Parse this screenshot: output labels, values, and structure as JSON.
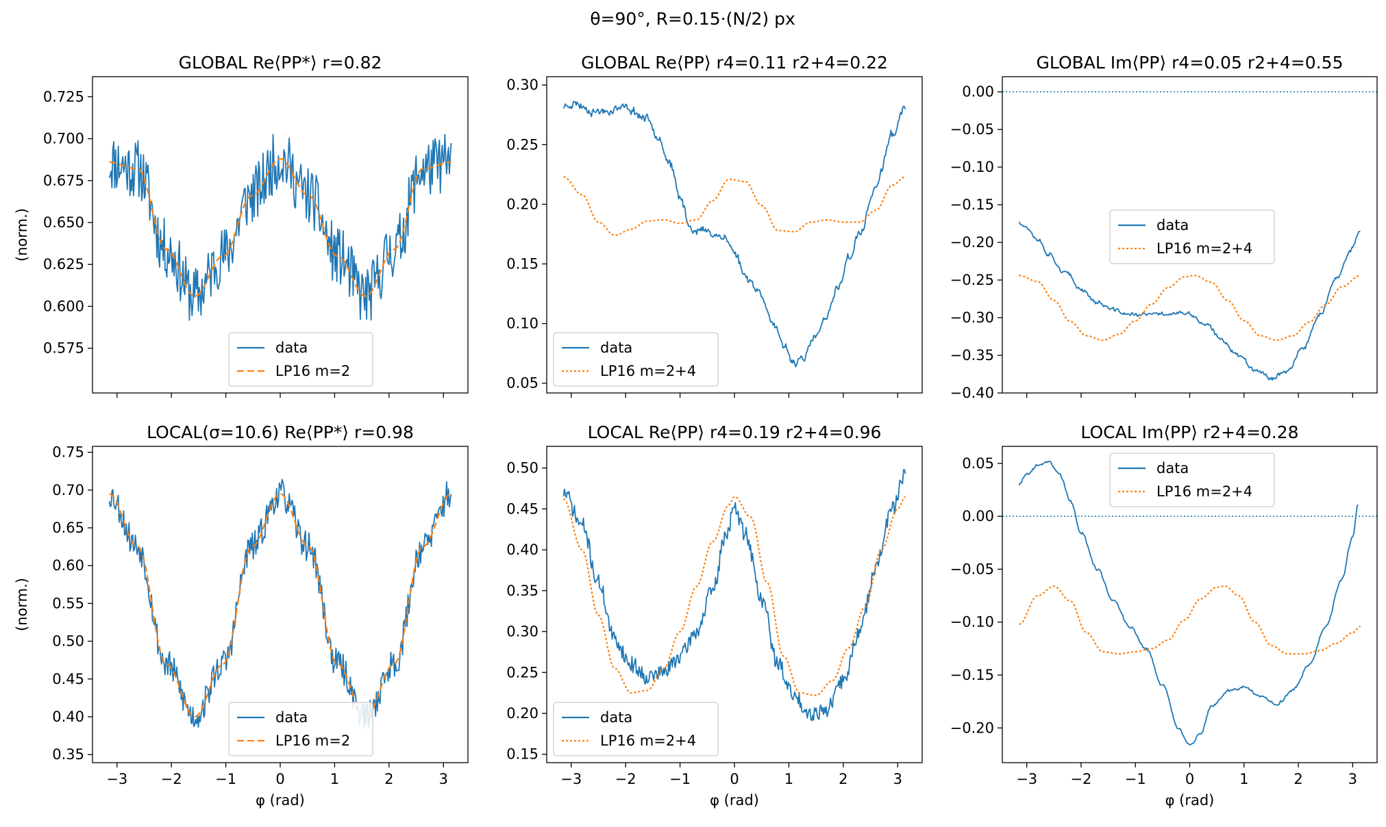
{
  "figure": {
    "suptitle": "θ=90°,  R=0.15·(N/2) px"
  },
  "colors": {
    "data": "#1f77b4",
    "model": "#ff7f0e",
    "axes": "#000000",
    "legend_edge": "#cccccc"
  },
  "chart_data": [
    {
      "type": "line",
      "title": "GLOBAL Re⟨PP*⟩  r=0.82",
      "xlabel": "",
      "ylabel": "(norm.)",
      "xlim": [
        -3.45,
        3.45
      ],
      "ylim": [
        0.5483,
        0.737
      ],
      "xticks": [
        -3,
        -2,
        -1,
        0,
        1,
        2,
        3
      ],
      "xticklabels_visible": false,
      "yticks": [
        0.575,
        0.6,
        0.625,
        0.65,
        0.675,
        0.7,
        0.725
      ],
      "yticklabels": [
        "0.575",
        "0.600",
        "0.625",
        "0.650",
        "0.675",
        "0.700",
        "0.725"
      ],
      "legend": "lower center",
      "hline": null,
      "series": [
        {
          "name": "data",
          "style": "solid",
          "kind": "data_noisy",
          "x": [
            -3.1416,
            -2.618,
            -2.0944,
            -1.5708,
            -1.0472,
            -0.5236,
            0,
            0.5236,
            1.0472,
            1.5708,
            2.0944,
            2.618,
            3.1416
          ],
          "y": [
            0.686,
            0.682,
            0.634,
            0.606,
            0.63,
            0.666,
            0.688,
            0.666,
            0.63,
            0.606,
            0.634,
            0.682,
            0.686
          ],
          "noise": 0.018,
          "seed": 11
        },
        {
          "name": "LP16 m=2",
          "style": "dashed",
          "kind": "smooth",
          "x": [
            -3.1416,
            -2.618,
            -2.0944,
            -1.5708,
            -1.0472,
            -0.5236,
            0,
            0.5236,
            1.0472,
            1.5708,
            2.0944,
            2.618,
            3.1416
          ],
          "y": [
            0.686,
            0.682,
            0.634,
            0.606,
            0.63,
            0.666,
            0.688,
            0.666,
            0.63,
            0.606,
            0.634,
            0.682,
            0.686
          ]
        }
      ]
    },
    {
      "type": "line",
      "title": "GLOBAL Re⟨PP⟩  r4=0.11  r2+4=0.22",
      "xlabel": "",
      "ylabel": "",
      "xlim": [
        -3.45,
        3.45
      ],
      "ylim": [
        0.0418,
        0.307
      ],
      "xticks": [
        -3,
        -2,
        -1,
        0,
        1,
        2,
        3
      ],
      "xticklabels_visible": false,
      "yticks": [
        0.05,
        0.1,
        0.15,
        0.2,
        0.25,
        0.3
      ],
      "yticklabels": [
        "0.05",
        "0.10",
        "0.15",
        "0.20",
        "0.25",
        "0.30"
      ],
      "legend": "lower left",
      "hline": null,
      "series": [
        {
          "name": "data",
          "style": "solid",
          "kind": "data_smooth",
          "x": [
            -3.14,
            -3.0,
            -2.5,
            -2.0,
            -1.6,
            -1.4,
            -1.2,
            -1.0,
            -0.8,
            -0.5,
            -0.2,
            0,
            0.2,
            0.5,
            0.7,
            0.9,
            1.1,
            1.3,
            1.5,
            1.7,
            1.9,
            2.1,
            2.3,
            2.6,
            2.9,
            3.14
          ],
          "y": [
            0.282,
            0.285,
            0.278,
            0.281,
            0.272,
            0.258,
            0.235,
            0.205,
            0.18,
            0.177,
            0.173,
            0.16,
            0.14,
            0.125,
            0.1,
            0.08,
            0.068,
            0.073,
            0.09,
            0.105,
            0.13,
            0.155,
            0.175,
            0.215,
            0.258,
            0.282
          ],
          "noise": 0.005,
          "seed": 23
        },
        {
          "name": "LP16 m=2+4",
          "style": "dotted",
          "kind": "smooth",
          "x": [
            -3.1416,
            -2.8,
            -2.5,
            -2.2,
            -1.9,
            -1.6,
            -1.3,
            -1.0,
            -0.7,
            -0.4,
            -0.1,
            0.2,
            0.5,
            0.8,
            1.1,
            1.4,
            1.7,
            2.0,
            2.3,
            2.6,
            2.9,
            3.1416
          ],
          "y": [
            0.223,
            0.208,
            0.185,
            0.174,
            0.179,
            0.186,
            0.187,
            0.184,
            0.187,
            0.203,
            0.221,
            0.219,
            0.199,
            0.178,
            0.177,
            0.185,
            0.187,
            0.185,
            0.185,
            0.195,
            0.216,
            0.223
          ]
        }
      ]
    },
    {
      "type": "line",
      "title": "GLOBAL Im⟨PP⟩  r4=0.05  r2+4=0.55",
      "xlabel": "",
      "ylabel": "",
      "xlim": [
        -3.45,
        3.45
      ],
      "ylim": [
        -0.4,
        0.0201
      ],
      "xticks": [
        -3,
        -2,
        -1,
        0,
        1,
        2,
        3
      ],
      "xticklabels_visible": false,
      "yticks": [
        -0.4,
        -0.35,
        -0.3,
        -0.25,
        -0.2,
        -0.15,
        -0.1,
        -0.05,
        0.0
      ],
      "yticklabels": [
        "−0.40",
        "−0.35",
        "−0.30",
        "−0.25",
        "−0.20",
        "−0.15",
        "−0.10",
        "−0.05",
        "0.00"
      ],
      "legend": "center right",
      "hline": 0,
      "series": [
        {
          "name": "data",
          "style": "solid",
          "kind": "data_smooth",
          "x": [
            -3.14,
            -3.0,
            -2.8,
            -2.6,
            -2.3,
            -2.0,
            -1.7,
            -1.4,
            -1.1,
            -0.8,
            -0.5,
            -0.2,
            0.0,
            0.3,
            0.6,
            0.9,
            1.2,
            1.5,
            1.8,
            2.1,
            2.4,
            2.7,
            2.95,
            3.14
          ],
          "y": [
            -0.172,
            -0.18,
            -0.195,
            -0.215,
            -0.24,
            -0.262,
            -0.28,
            -0.29,
            -0.296,
            -0.296,
            -0.295,
            -0.294,
            -0.296,
            -0.31,
            -0.33,
            -0.35,
            -0.368,
            -0.38,
            -0.37,
            -0.34,
            -0.295,
            -0.25,
            -0.212,
            -0.185
          ],
          "noise": 0.004,
          "seed": 37
        },
        {
          "name": "LP16 m=2+4",
          "style": "dotted",
          "kind": "smooth",
          "x": [
            -3.1416,
            -2.8,
            -2.5,
            -2.2,
            -1.9,
            -1.6,
            -1.3,
            -1.0,
            -0.7,
            -0.4,
            -0.1,
            0.1,
            0.4,
            0.7,
            1.0,
            1.3,
            1.6,
            1.9,
            2.2,
            2.5,
            2.8,
            3.1416
          ],
          "y": [
            -0.244,
            -0.252,
            -0.277,
            -0.305,
            -0.324,
            -0.33,
            -0.322,
            -0.304,
            -0.282,
            -0.26,
            -0.246,
            -0.244,
            -0.253,
            -0.277,
            -0.304,
            -0.324,
            -0.33,
            -0.324,
            -0.306,
            -0.283,
            -0.259,
            -0.244
          ]
        }
      ]
    },
    {
      "type": "line",
      "title": "LOCAL(σ=10.6) Re⟨PP*⟩  r=0.98",
      "xlabel": "φ (rad)",
      "ylabel": "(norm.)",
      "xlim": [
        -3.45,
        3.45
      ],
      "ylim": [
        0.3393,
        0.7578
      ],
      "xticks": [
        -3,
        -2,
        -1,
        0,
        1,
        2,
        3
      ],
      "xticklabels": [
        "−3",
        "−2",
        "−1",
        "0",
        "1",
        "2",
        "3"
      ],
      "xticklabels_visible": true,
      "yticks": [
        0.35,
        0.4,
        0.45,
        0.5,
        0.55,
        0.6,
        0.65,
        0.7,
        0.75
      ],
      "yticklabels": [
        "0.35",
        "0.40",
        "0.45",
        "0.50",
        "0.55",
        "0.60",
        "0.65",
        "0.70",
        "0.75"
      ],
      "legend": "lower center",
      "hline": null,
      "series": [
        {
          "name": "data",
          "style": "solid",
          "kind": "data_noisy",
          "x": [
            -3.1416,
            -2.618,
            -2.0944,
            -1.5708,
            -1.0472,
            -0.5236,
            0,
            0.5236,
            1.0472,
            1.5708,
            2.0944,
            2.618,
            3.1416
          ],
          "y": [
            0.695,
            0.625,
            0.47,
            0.4,
            0.47,
            0.625,
            0.695,
            0.625,
            0.47,
            0.4,
            0.47,
            0.625,
            0.695
          ],
          "noise": 0.02,
          "seed": 53
        },
        {
          "name": "LP16 m=2",
          "style": "dashed",
          "kind": "smooth",
          "x": [
            -3.1416,
            -2.618,
            -2.0944,
            -1.5708,
            -1.0472,
            -0.5236,
            0,
            0.5236,
            1.0472,
            1.5708,
            2.0944,
            2.618,
            3.1416
          ],
          "y": [
            0.695,
            0.625,
            0.47,
            0.4,
            0.47,
            0.625,
            0.695,
            0.625,
            0.47,
            0.4,
            0.47,
            0.625,
            0.695
          ]
        }
      ]
    },
    {
      "type": "line",
      "title": "LOCAL Re⟨PP⟩  r4=0.19  r2+4=0.96",
      "xlabel": "φ (rad)",
      "ylabel": "",
      "xlim": [
        -3.45,
        3.45
      ],
      "ylim": [
        0.1397,
        0.5265
      ],
      "xticks": [
        -3,
        -2,
        -1,
        0,
        1,
        2,
        3
      ],
      "xticklabels": [
        "−3",
        "−2",
        "−1",
        "0",
        "1",
        "2",
        "3"
      ],
      "xticklabels_visible": true,
      "yticks": [
        0.15,
        0.2,
        0.25,
        0.3,
        0.35,
        0.4,
        0.45,
        0.5
      ],
      "yticklabels": [
        "0.15",
        "0.20",
        "0.25",
        "0.30",
        "0.35",
        "0.40",
        "0.45",
        "0.50"
      ],
      "legend": "lower left",
      "hline": null,
      "series": [
        {
          "name": "data",
          "style": "solid",
          "kind": "data_noisy",
          "x": [
            -3.14,
            -2.8,
            -2.5,
            -2.2,
            -1.9,
            -1.6,
            -1.3,
            -1.0,
            -0.7,
            -0.4,
            -0.15,
            0.0,
            0.2,
            0.5,
            0.8,
            1.1,
            1.4,
            1.7,
            2.0,
            2.3,
            2.6,
            2.9,
            3.14
          ],
          "y": [
            0.47,
            0.43,
            0.36,
            0.29,
            0.26,
            0.245,
            0.25,
            0.27,
            0.3,
            0.35,
            0.42,
            0.45,
            0.42,
            0.34,
            0.26,
            0.22,
            0.2,
            0.205,
            0.24,
            0.3,
            0.38,
            0.45,
            0.49
          ],
          "noise": 0.01,
          "seed": 71
        },
        {
          "name": "LP16 m=2+4",
          "style": "dotted",
          "kind": "smooth",
          "x": [
            -3.1416,
            -2.8,
            -2.5,
            -2.2,
            -1.9,
            -1.6,
            -1.3,
            -1.0,
            -0.7,
            -0.4,
            -0.1,
            0.0,
            0.3,
            0.6,
            0.9,
            1.2,
            1.5,
            1.8,
            2.1,
            2.4,
            2.7,
            3.0,
            3.1416
          ],
          "y": [
            0.462,
            0.4,
            0.32,
            0.255,
            0.225,
            0.228,
            0.255,
            0.3,
            0.355,
            0.41,
            0.455,
            0.465,
            0.44,
            0.36,
            0.27,
            0.225,
            0.222,
            0.24,
            0.28,
            0.33,
            0.4,
            0.45,
            0.465
          ]
        }
      ]
    },
    {
      "type": "line",
      "title": "LOCAL Im⟨PP⟩  r2+4=0.28",
      "xlabel": "φ (rad)",
      "ylabel": "",
      "xlim": [
        -3.45,
        3.45
      ],
      "ylim": [
        -0.2328,
        0.0661
      ],
      "xticks": [
        -3,
        -2,
        -1,
        0,
        1,
        2,
        3
      ],
      "xticklabels": [
        "−3",
        "−2",
        "−1",
        "0",
        "1",
        "2",
        "3"
      ],
      "xticklabels_visible": true,
      "yticks": [
        -0.2,
        -0.15,
        -0.1,
        -0.05,
        0.0,
        0.05
      ],
      "yticklabels": [
        "−0.20",
        "−0.15",
        "−0.10",
        "−0.05",
        "0.00",
        "0.05"
      ],
      "legend": "upper right",
      "hline": 0,
      "series": [
        {
          "name": "data",
          "style": "solid",
          "kind": "data_smooth",
          "x": [
            -3.14,
            -3.0,
            -2.8,
            -2.6,
            -2.4,
            -2.2,
            -2.0,
            -1.7,
            -1.4,
            -1.1,
            -0.8,
            -0.5,
            -0.2,
            0.0,
            0.2,
            0.4,
            0.7,
            1.0,
            1.3,
            1.6,
            1.9,
            2.2,
            2.5,
            2.8,
            3.0,
            3.1
          ],
          "y": [
            0.03,
            0.04,
            0.048,
            0.052,
            0.04,
            0.015,
            -0.015,
            -0.05,
            -0.08,
            -0.105,
            -0.125,
            -0.16,
            -0.2,
            -0.217,
            -0.205,
            -0.18,
            -0.165,
            -0.162,
            -0.17,
            -0.177,
            -0.165,
            -0.14,
            -0.105,
            -0.06,
            -0.02,
            0.012
          ],
          "noise": 0.002,
          "seed": 89
        },
        {
          "name": "LP16 m=2+4",
          "style": "dotted",
          "kind": "smooth",
          "x": [
            -3.1416,
            -2.8,
            -2.5,
            -2.2,
            -1.9,
            -1.6,
            -1.3,
            -1.0,
            -0.7,
            -0.4,
            -0.1,
            0.2,
            0.5,
            0.65,
            0.9,
            1.2,
            1.5,
            1.8,
            2.1,
            2.4,
            2.7,
            3.0,
            3.1416
          ],
          "y": [
            -0.102,
            -0.075,
            -0.066,
            -0.08,
            -0.11,
            -0.128,
            -0.13,
            -0.128,
            -0.125,
            -0.117,
            -0.098,
            -0.078,
            -0.067,
            -0.066,
            -0.075,
            -0.1,
            -0.122,
            -0.13,
            -0.13,
            -0.127,
            -0.12,
            -0.11,
            -0.104
          ]
        }
      ]
    }
  ]
}
